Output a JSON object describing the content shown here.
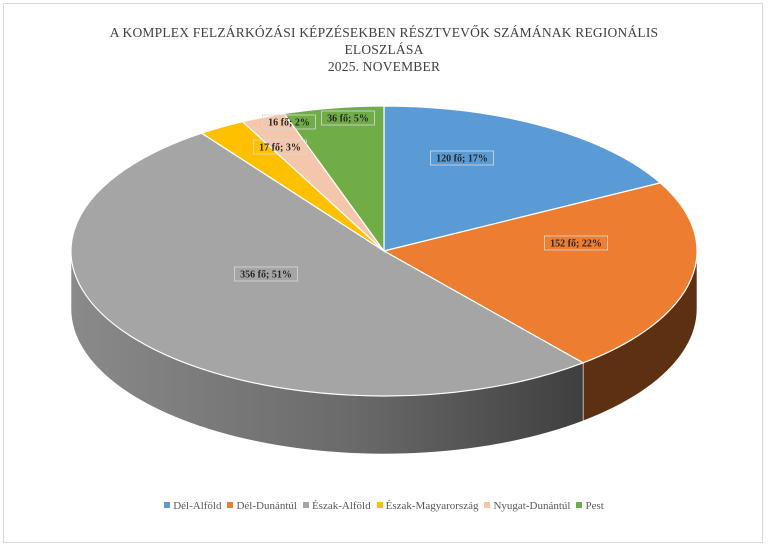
{
  "chart_data": {
    "type": "pie",
    "title_lines": [
      "A KOMPLEX FELZÁRKÓZÁSI KÉPZÉSEKBEN RÉSZTVEVŐK SZÁMÁNAK REGIONÁLIS",
      "ELOSZLÁSA",
      "2025. NOVEMBER"
    ],
    "slices": [
      {
        "label": "Dél-Alföld",
        "value": 120,
        "percent": 17,
        "data_label": "120 fő; 17%",
        "color": "#5b9bd5",
        "side": "#3a6d9c"
      },
      {
        "label": "Dél-Dunántúl",
        "value": 152,
        "percent": 22,
        "data_label": "152 fő; 22%",
        "color": "#ed7d31",
        "side": "#5e3012"
      },
      {
        "label": "Észak-Alföld",
        "value": 356,
        "percent": 51,
        "data_label": "356 fő; 51%",
        "color": "#a5a5a5",
        "side": "#5a5a5a"
      },
      {
        "label": "Észak-Magyarország",
        "value": 17,
        "percent": 3,
        "data_label": "17 fő; 3%",
        "color": "#ffc000",
        "side": "#8a6800"
      },
      {
        "label": "Nyugat-Dunántúl",
        "value": 16,
        "percent": 2,
        "data_label": "16 fő; 2%",
        "color": "#f4c7ad",
        "side": "#b08570"
      },
      {
        "label": "Pest",
        "value": 36,
        "percent": 5,
        "data_label": "36 fő; 5%",
        "color": "#70ad47",
        "side": "#3d6326"
      }
    ],
    "legend_position": "bottom"
  }
}
